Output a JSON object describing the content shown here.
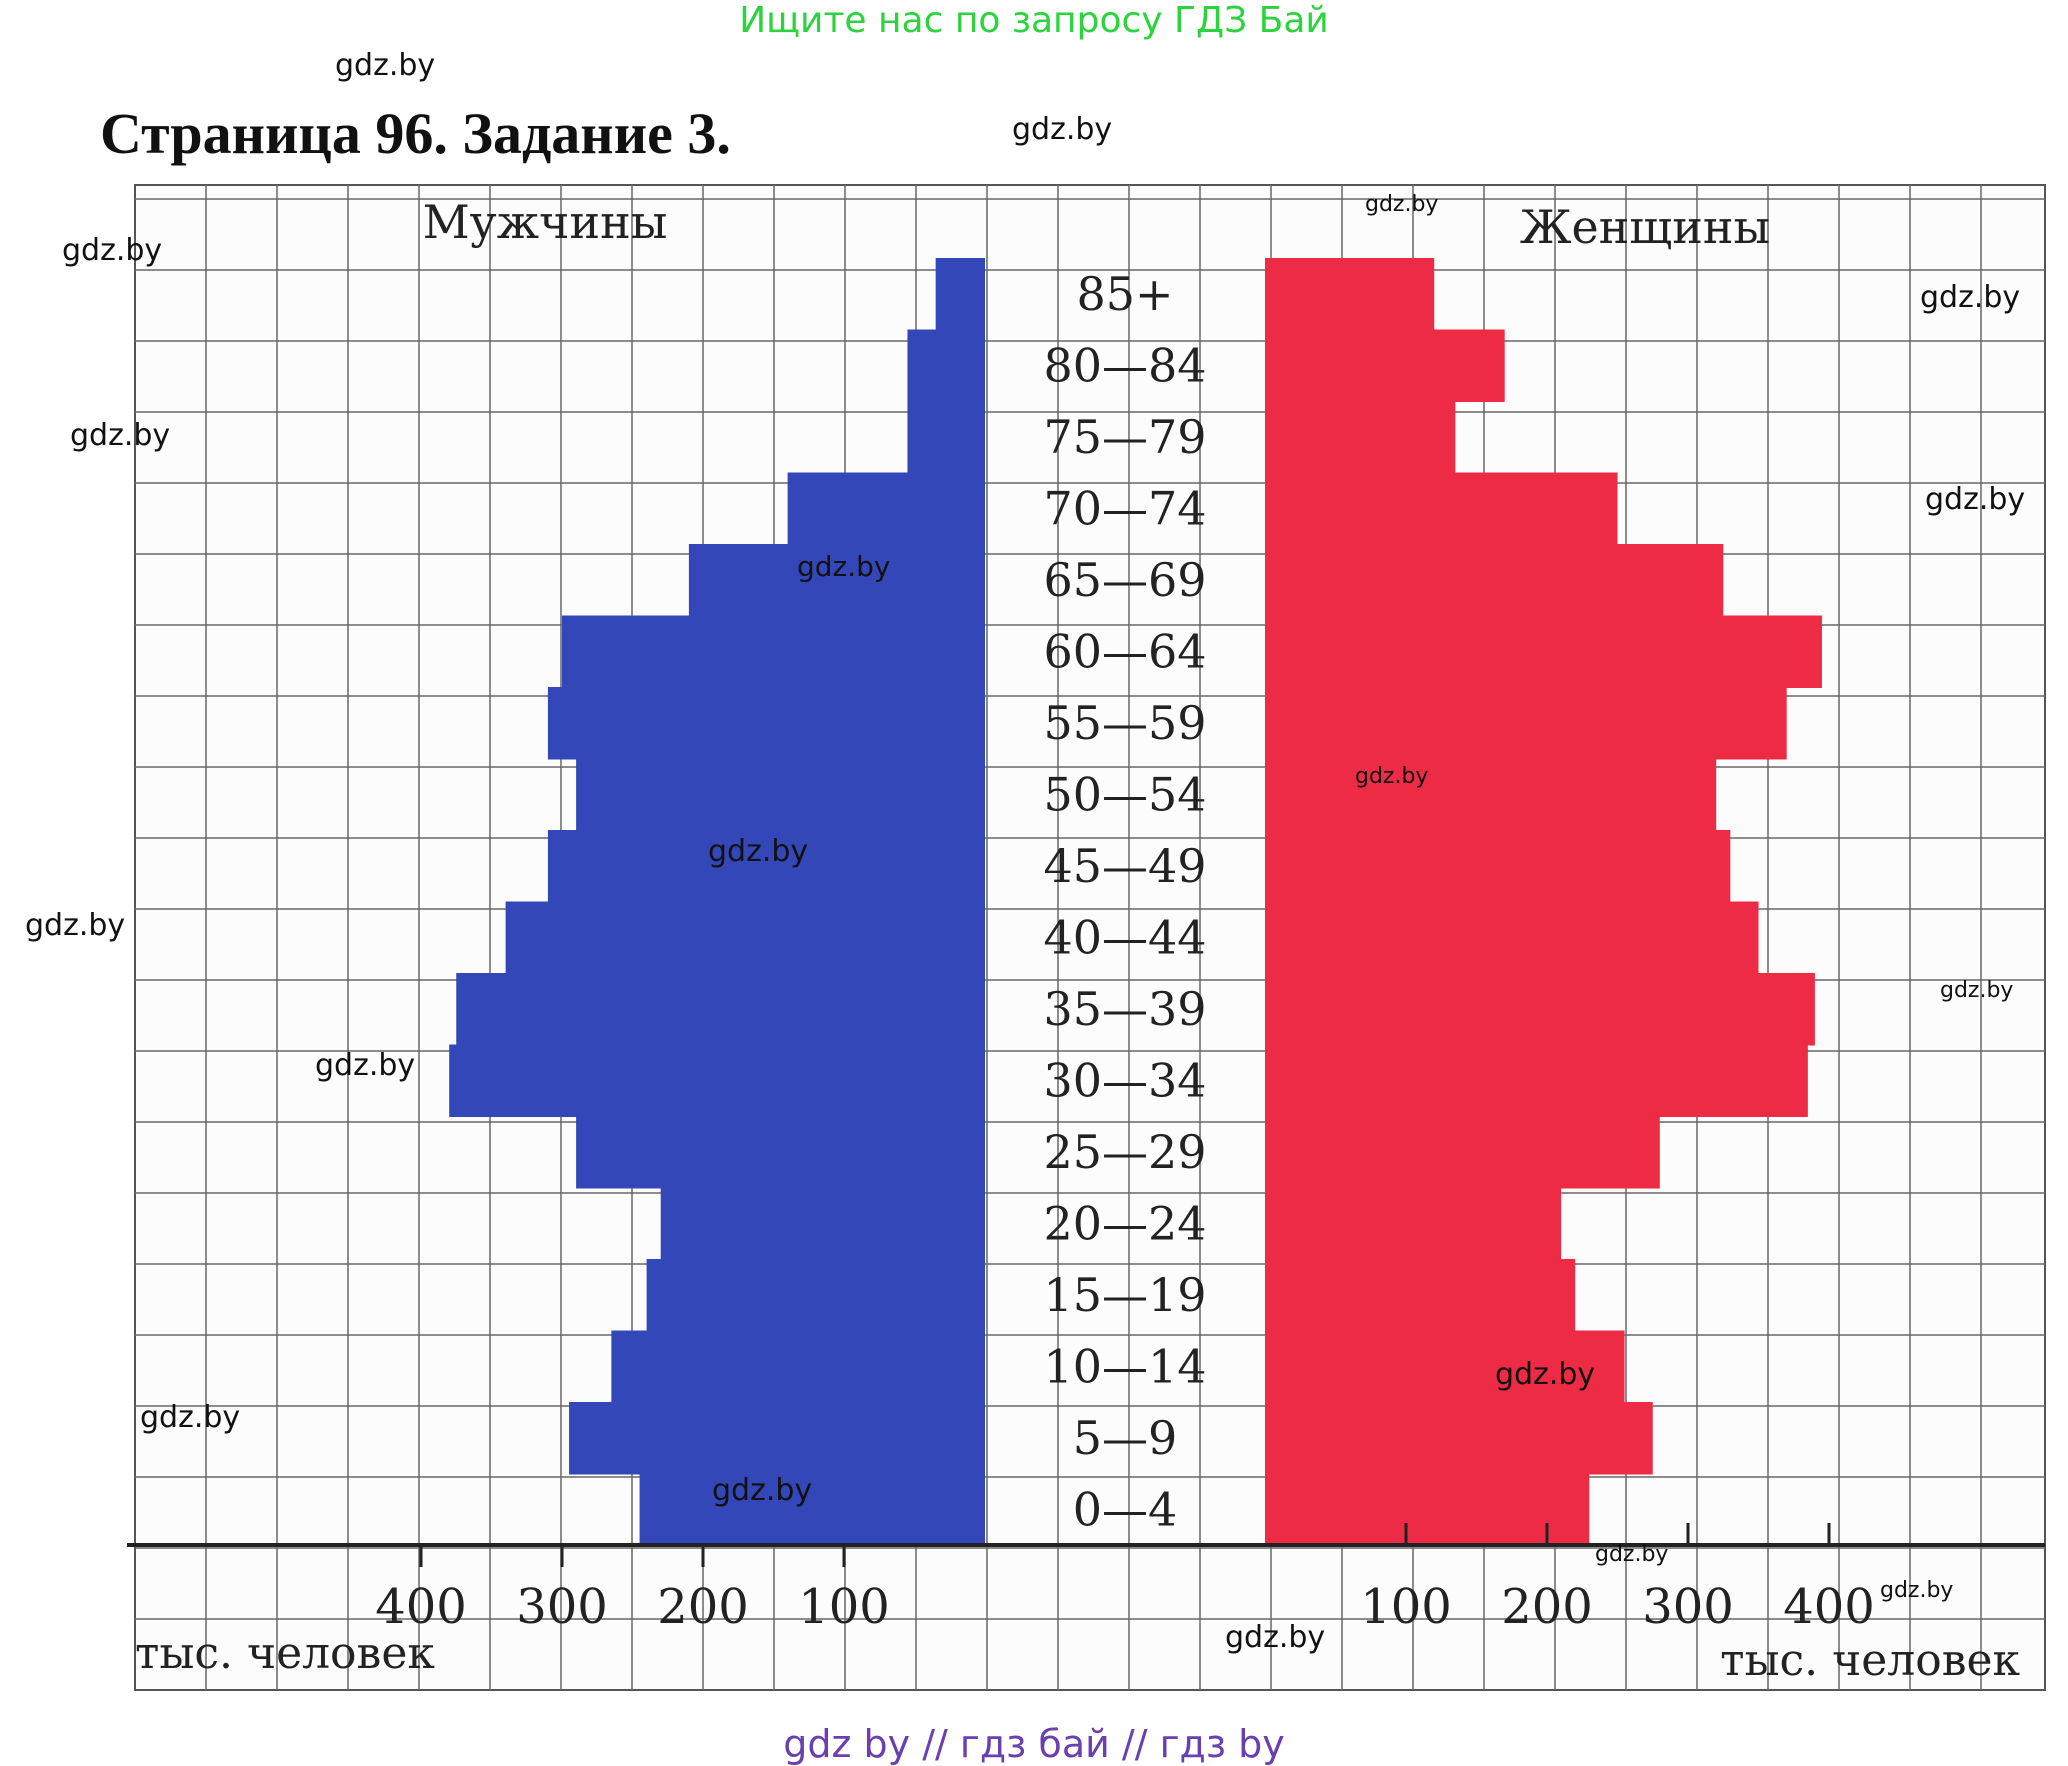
{
  "header": {
    "banner": "Ищите нас по запросу ГДЗ Бай",
    "title": "Страница 96. Задание 3."
  },
  "footer": {
    "banner": "gdz by  //  гдз бай  //  гдз by"
  },
  "watermarks": [
    "gdz.by",
    "gdz.by",
    "gdz.by",
    "gdz.by",
    "gdz.by",
    "gdz.by",
    "gdz.by",
    "gdz.by",
    "gdz.by",
    "gdz.by",
    "gdz.by",
    "gdz.by",
    "gdz.by",
    "gdz.by",
    "gdz.by",
    "gdz.by",
    "gdz.by",
    "gdz.by",
    "gdz.by"
  ],
  "chart_data": {
    "type": "bar",
    "orientation": "horizontal",
    "subtype": "population-pyramid",
    "categories": [
      "0—4",
      "5—9",
      "10—14",
      "15—19",
      "20—24",
      "25—29",
      "30—34",
      "35—39",
      "40—44",
      "45—49",
      "50—54",
      "55—59",
      "60—64",
      "65—69",
      "70—74",
      "75—79",
      "80—84",
      "85+"
    ],
    "series": [
      {
        "name": "Мужчины",
        "color": "#3447b8",
        "values": [
          245,
          295,
          265,
          240,
          230,
          290,
          380,
          375,
          340,
          310,
          290,
          310,
          300,
          210,
          140,
          55,
          55,
          35
        ]
      },
      {
        "name": "Женщины",
        "color": "#ee2b45",
        "values": [
          230,
          275,
          255,
          220,
          210,
          280,
          385,
          390,
          350,
          330,
          320,
          370,
          395,
          325,
          250,
          135,
          170,
          120
        ]
      }
    ],
    "xlabel": "тыс. человек",
    "ticks": [
      100,
      200,
      300,
      400
    ],
    "tick_labels": [
      "100",
      "200",
      "300",
      "400"
    ],
    "xlim": [
      0,
      420
    ],
    "grid": true
  }
}
